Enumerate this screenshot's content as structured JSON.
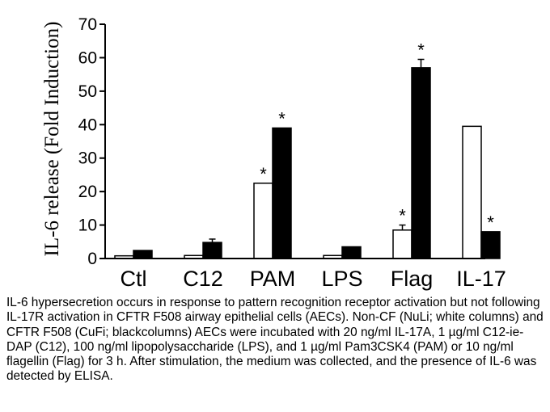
{
  "chart_data": {
    "type": "bar",
    "ylabel": "IL-6 release (Fold Induction)",
    "ylim": [
      0,
      70
    ],
    "yticks": [
      0,
      10,
      20,
      30,
      40,
      50,
      60,
      70
    ],
    "categories": [
      "Ctl",
      "C12",
      "PAM",
      "LPS",
      "Flag",
      "IL-17"
    ],
    "series": [
      {
        "fill": "#ffffff",
        "values": [
          0.8,
          0.9,
          22.5,
          0.9,
          8.5,
          39.5
        ],
        "errors": [
          0,
          0,
          0,
          0,
          1.5,
          0
        ]
      },
      {
        "fill": "#000000",
        "values": [
          2.4,
          4.8,
          39,
          3.5,
          57,
          8
        ],
        "errors": [
          0,
          1,
          0,
          0,
          2.5,
          0
        ]
      }
    ],
    "significance": [
      {
        "series": 0,
        "category": "PAM",
        "label": "*"
      },
      {
        "series": 1,
        "category": "PAM",
        "label": "*"
      },
      {
        "series": 0,
        "category": "Flag",
        "label": "*"
      },
      {
        "series": 1,
        "category": "Flag",
        "label": "*"
      },
      {
        "series": 1,
        "category": "IL-17",
        "label": "*"
      }
    ],
    "grid": false,
    "legend": "none"
  },
  "caption": "IL-6 hypersecretion occurs in response to pattern recognition receptor activation but not following IL-17R activation in CFTR  F508 airway epithelial cells (AECs). Non-CF (NuLi; white columns) and CFTR  F508 (CuFi; blackcolumns) AECs were incubated with 20 ng/ml IL-17A, 1 µg/ml C12-ie-DAP (C12), 100 ng/ml lipopolysaccharide (LPS), and 1 µg/ml Pam3CSK4 (PAM) or 10 ng/ml flagellin (Flag) for 3 h. After stimulation, the medium was collected, and the presence of IL-6 was detected by ELISA."
}
